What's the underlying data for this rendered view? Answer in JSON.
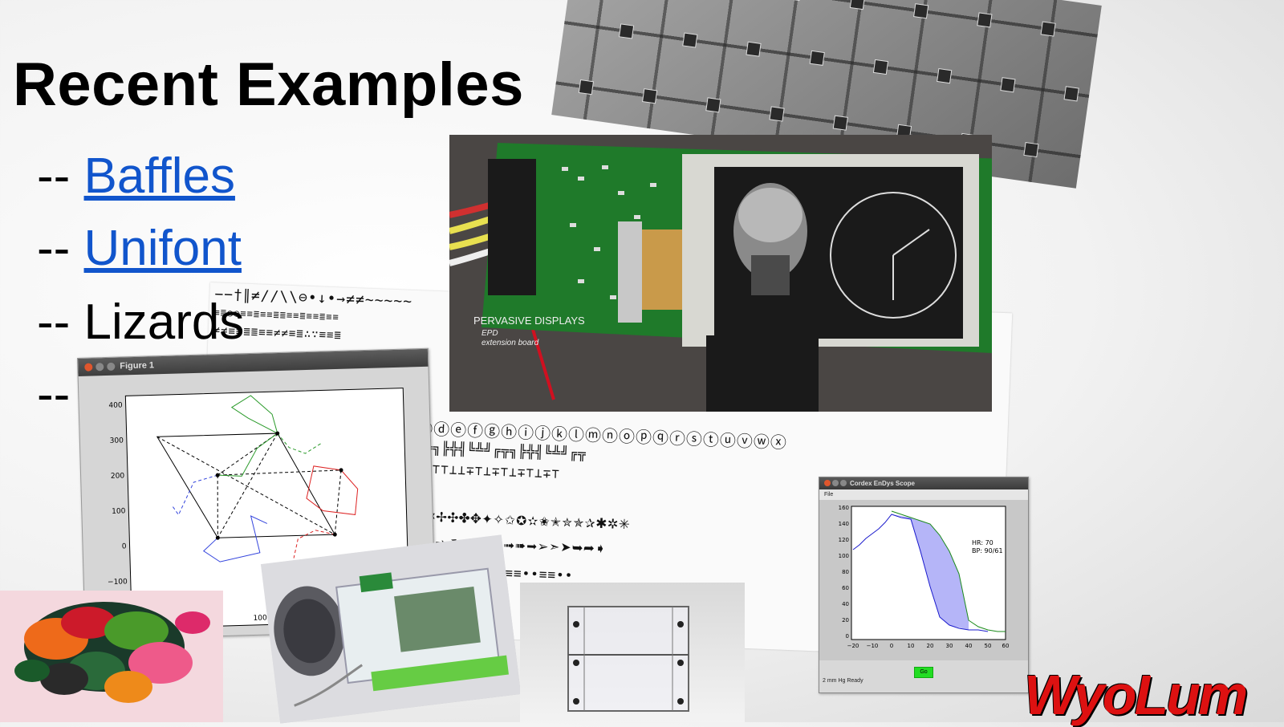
{
  "slide": {
    "title": "Recent Examples",
    "bullets": [
      {
        "prefix": "-- ",
        "text": "Baffles",
        "link": true
      },
      {
        "prefix": "-- ",
        "text": "Unifont",
        "link": true
      },
      {
        "prefix": "-- ",
        "text": "Lizards",
        "link": false
      },
      {
        "prefix": "--",
        "text": "",
        "link": false
      }
    ]
  },
  "pcb": {
    "board_brand": "PERVASIVE DISPLAYS",
    "board_sub1": "EPD",
    "board_sub2": "extension board"
  },
  "figure": {
    "window_title": "Figure 1",
    "y_ticks": [
      "400",
      "300",
      "200",
      "100",
      "0",
      "−100"
    ],
    "x_ticks": [
      "100"
    ]
  },
  "cordex": {
    "window_title": "Cordex EnDys Scope",
    "menu": "File",
    "hr_label": "HR: 70",
    "bp_label": "BP: 90/61",
    "go_label": "Go",
    "status_text": "2 mm Hg Ready",
    "y_ticks": [
      "160",
      "140",
      "120",
      "100",
      "80",
      "60",
      "40",
      "20",
      "0"
    ],
    "x_ticks": [
      "−20",
      "−10",
      "0",
      "10",
      "20",
      "30",
      "40",
      "50",
      "60"
    ]
  },
  "font_sheet": {
    "rows": [
      "−−†∥≠/∕\\\\⊖•↓•→≠≠∼∼∼∼∼",
      "≡≣○○≡≡≣≡≡≣≣≡≡≣≡≡≣≡≡",
      "≠≠≡≡≣≣≡≡≠≠≡≣∴∵≡≡≣",
      "ⓒⓓⓔⓕⓖⓗⓘⓙⓚⓛⓜⓝⓞⓟⓠⓡⓢⓣⓤⓥⓦⓧ",
      "╔╦╗╠╬╣╚╩╝╔╦╗╠╬╣╚╩╝╔╦",
      "∓∓⊤⊤⊥⊥∓⊤⊥∓⊤⊥∓⊤⊥∓⊤",
      "✠✡✢✣✤✥✦✧✩✪✫✬✭✮✯✰✱✲✳",
      "➔➘➙➚➛➜➝➞➟➠➡➢➣➤➥➦➧",
      "•••≡≡••≡≡••≡≡••≡≡••"
    ]
  },
  "colors": {
    "link": "#1155cc",
    "logo": "#dd1111",
    "pcb_green": "#1f7a2a"
  },
  "icons": [
    "close-icon",
    "minimize-icon",
    "maximize-icon"
  ]
}
